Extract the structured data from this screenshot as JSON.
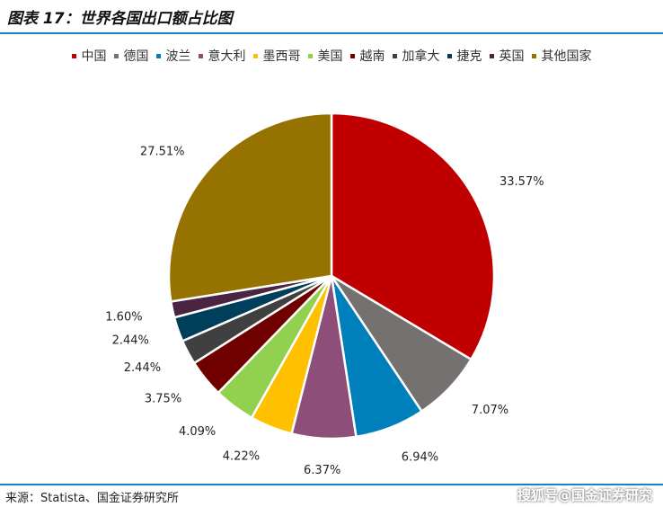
{
  "title": "图表 17：世界各国出口额占比图",
  "source": "来源：Statista、国金证券研究所",
  "watermark": "搜狐号@国金证券研究",
  "chart_data": {
    "type": "pie",
    "title": "",
    "start_angle_deg": 0,
    "direction": "clockwise",
    "legend_position": "top",
    "slices": [
      {
        "name": "中国",
        "value": 33.57,
        "label": "33.57%",
        "color": "#c00000"
      },
      {
        "name": "德国",
        "value": 7.07,
        "label": "7.07%",
        "color": "#767171"
      },
      {
        "name": "波兰",
        "value": 6.94,
        "label": "6.94%",
        "color": "#0080bb"
      },
      {
        "name": "意大利",
        "value": 6.37,
        "label": "6.37%",
        "color": "#8e4e7a"
      },
      {
        "name": "墨西哥",
        "value": 4.22,
        "label": "4.22%",
        "color": "#ffc000"
      },
      {
        "name": "美国",
        "value": 4.09,
        "label": "4.09%",
        "color": "#92d050"
      },
      {
        "name": "越南",
        "value": 3.75,
        "label": "3.75%",
        "color": "#700000"
      },
      {
        "name": "加拿大",
        "value": 2.44,
        "label": "2.44%",
        "color": "#404040"
      },
      {
        "name": "捷克",
        "value": 2.44,
        "label": "2.44%",
        "color": "#003f5c"
      },
      {
        "name": "英国",
        "value": 1.6,
        "label": "1.60%",
        "color": "#4a2441"
      },
      {
        "name": "其他国家",
        "value": 27.51,
        "label": "27.51%",
        "color": "#967300"
      }
    ]
  }
}
